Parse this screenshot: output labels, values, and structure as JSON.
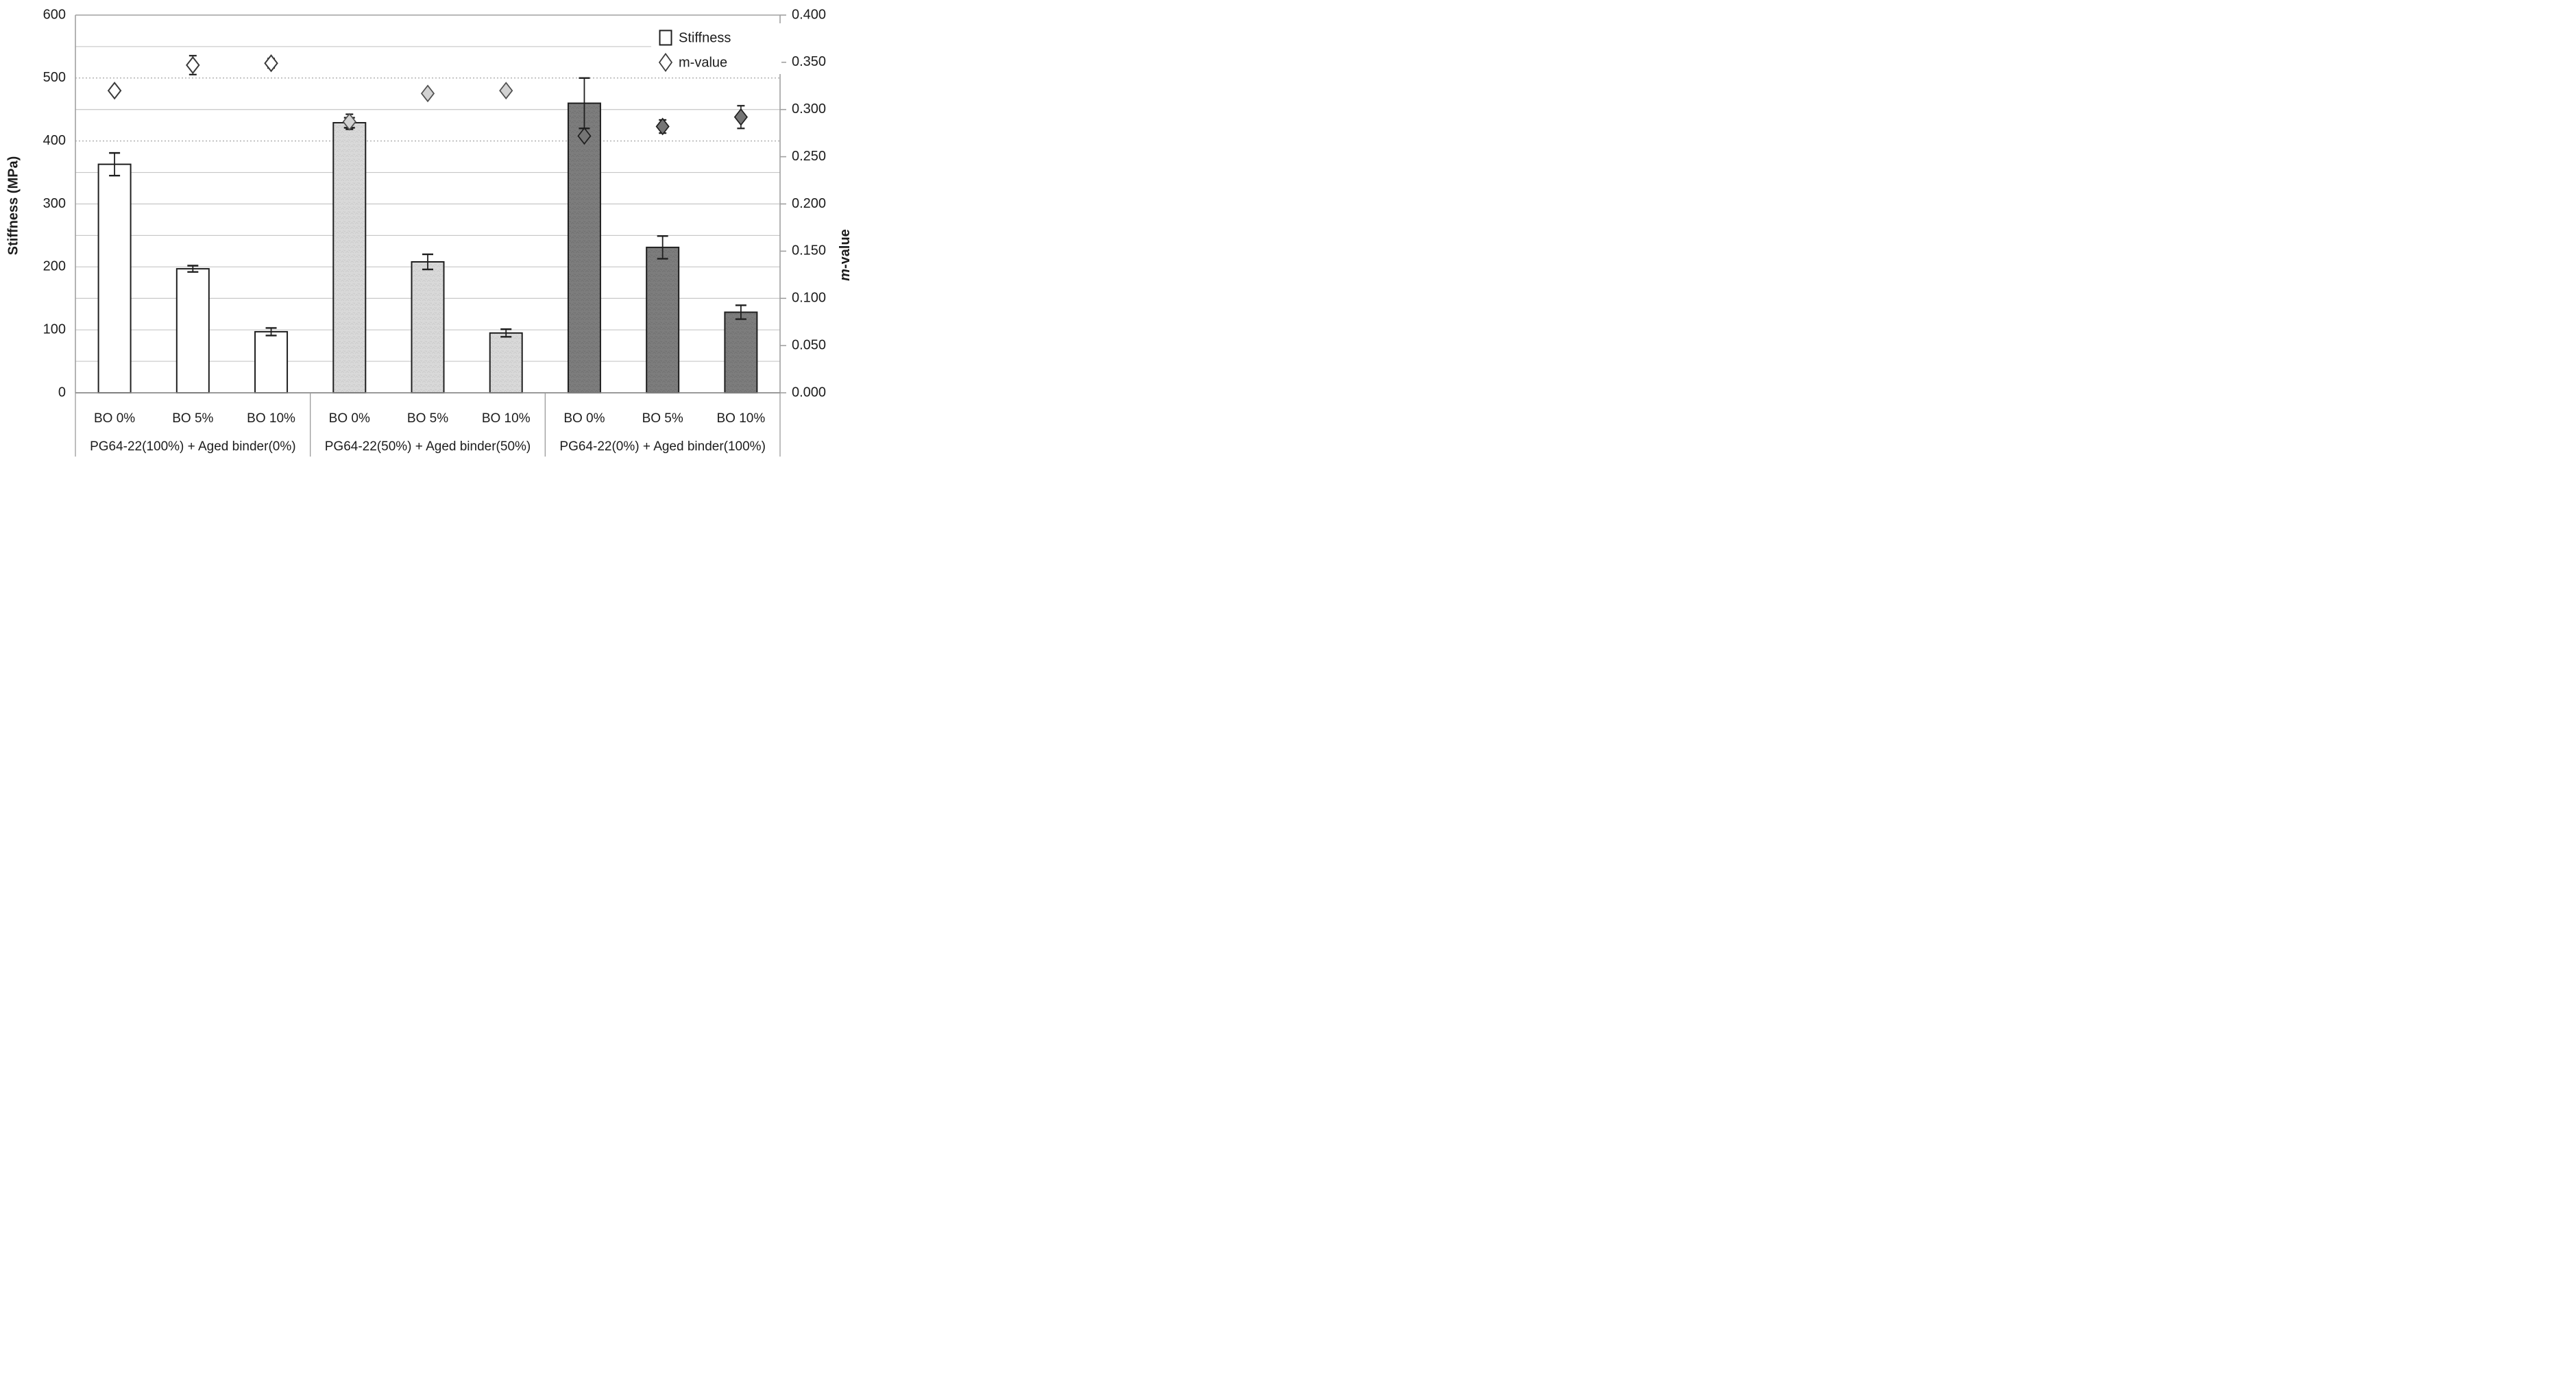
{
  "chart_data": {
    "type": "bar",
    "subtype": "grouped-bars-with-diamond-scatter-dual-axis",
    "grid": "on",
    "gridline_step_mpa": 50,
    "dotted_gridlines_mpa": [
      400,
      500
    ],
    "legend_position": "top-right-inside",
    "left_axis": {
      "title": "Stiffness (MPa)",
      "min": 0,
      "max": 600,
      "ticks": [
        {
          "label": "600",
          "value": 600
        },
        {
          "label": "500",
          "value": 500
        },
        {
          "label": "400",
          "value": 400
        },
        {
          "label": "300",
          "value": 300
        },
        {
          "label": "200",
          "value": 200
        },
        {
          "label": "100",
          "value": 100
        },
        {
          "label": "0",
          "value": 0
        }
      ]
    },
    "right_axis": {
      "title_italic_part": "m",
      "title_rest_part": "-value",
      "min": 0,
      "max": 0.4,
      "ticks": [
        {
          "label": "0.400",
          "value": 0.4
        },
        {
          "label": "0.350",
          "value": 0.35
        },
        {
          "label": "0.300",
          "value": 0.3
        },
        {
          "label": "0.250",
          "value": 0.25
        },
        {
          "label": "0.200",
          "value": 0.2
        },
        {
          "label": "0.150",
          "value": 0.15
        },
        {
          "label": "0.100",
          "value": 0.1
        },
        {
          "label": "0.050",
          "value": 0.05
        },
        {
          "label": "0.000",
          "value": 0.0
        }
      ]
    },
    "legend": [
      {
        "label": "Stiffness",
        "marker": "open-square"
      },
      {
        "label": "m-value",
        "marker": "open-diamond"
      }
    ],
    "groups": [
      "PG64-22(100%) + Aged binder(0%)",
      "PG64-22(50%) + Aged binder(50%)",
      "PG64-22(0%) + Aged binder(100%)"
    ],
    "categories_per_group": [
      "BO 0%",
      "BO 5%",
      "BO 10%"
    ],
    "series": [
      {
        "name": "Stiffness",
        "axis": "left",
        "unit": "MPa",
        "values": [
          [
            363,
            197,
            97
          ],
          [
            429,
            208,
            95
          ],
          [
            460,
            231,
            128
          ]
        ],
        "errors": [
          [
            18,
            5,
            6
          ],
          [
            8,
            12,
            6
          ],
          [
            40,
            18,
            11
          ]
        ]
      },
      {
        "name": "m-value",
        "axis": "right",
        "unit": "",
        "values": [
          [
            0.32,
            0.347,
            0.349
          ],
          [
            0.287,
            0.317,
            0.32
          ],
          [
            0.272,
            0.282,
            0.292
          ]
        ],
        "errors": [
          [
            0,
            0.01,
            0.005
          ],
          [
            0.008,
            0,
            0
          ],
          [
            0,
            0.007,
            0.012
          ]
        ]
      }
    ],
    "colors": {
      "bar_fills": [
        "#ffffff",
        "#d9d9d9",
        "#7d7d7d"
      ],
      "bar_textures": [
        "none",
        "#c9c9c9",
        "#6f6f6f"
      ],
      "bar_stroke": "#1f1f1f",
      "diamond_fills": [
        "#ffffff",
        "#d2d2d2",
        "#757575"
      ],
      "diamond_strokes": [
        "#3a3a3a",
        "#4f4f4f",
        "#1f1f1f"
      ],
      "gridline": "#c6c6c6",
      "gridline_dotted": "#9a9a9a",
      "axis_line": "#a0a0a0",
      "zero_line": "#8c8c8c",
      "separator": "#9a9a9a",
      "error_bar": "#1f1f1f",
      "text": "#1c1c1c"
    }
  }
}
